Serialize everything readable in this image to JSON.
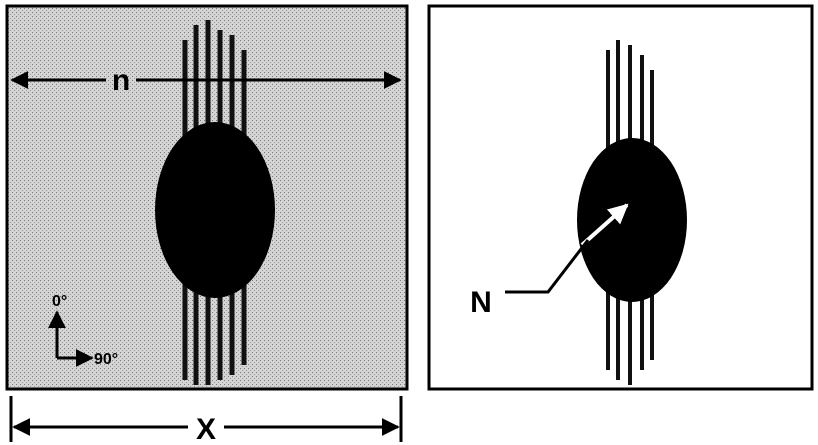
{
  "left_panel": {
    "arrow_label": "n",
    "axis_up_label": "0°",
    "axis_right_label": "90°",
    "width_label": "X"
  },
  "right_panel": {
    "pointer_label": "N"
  }
}
